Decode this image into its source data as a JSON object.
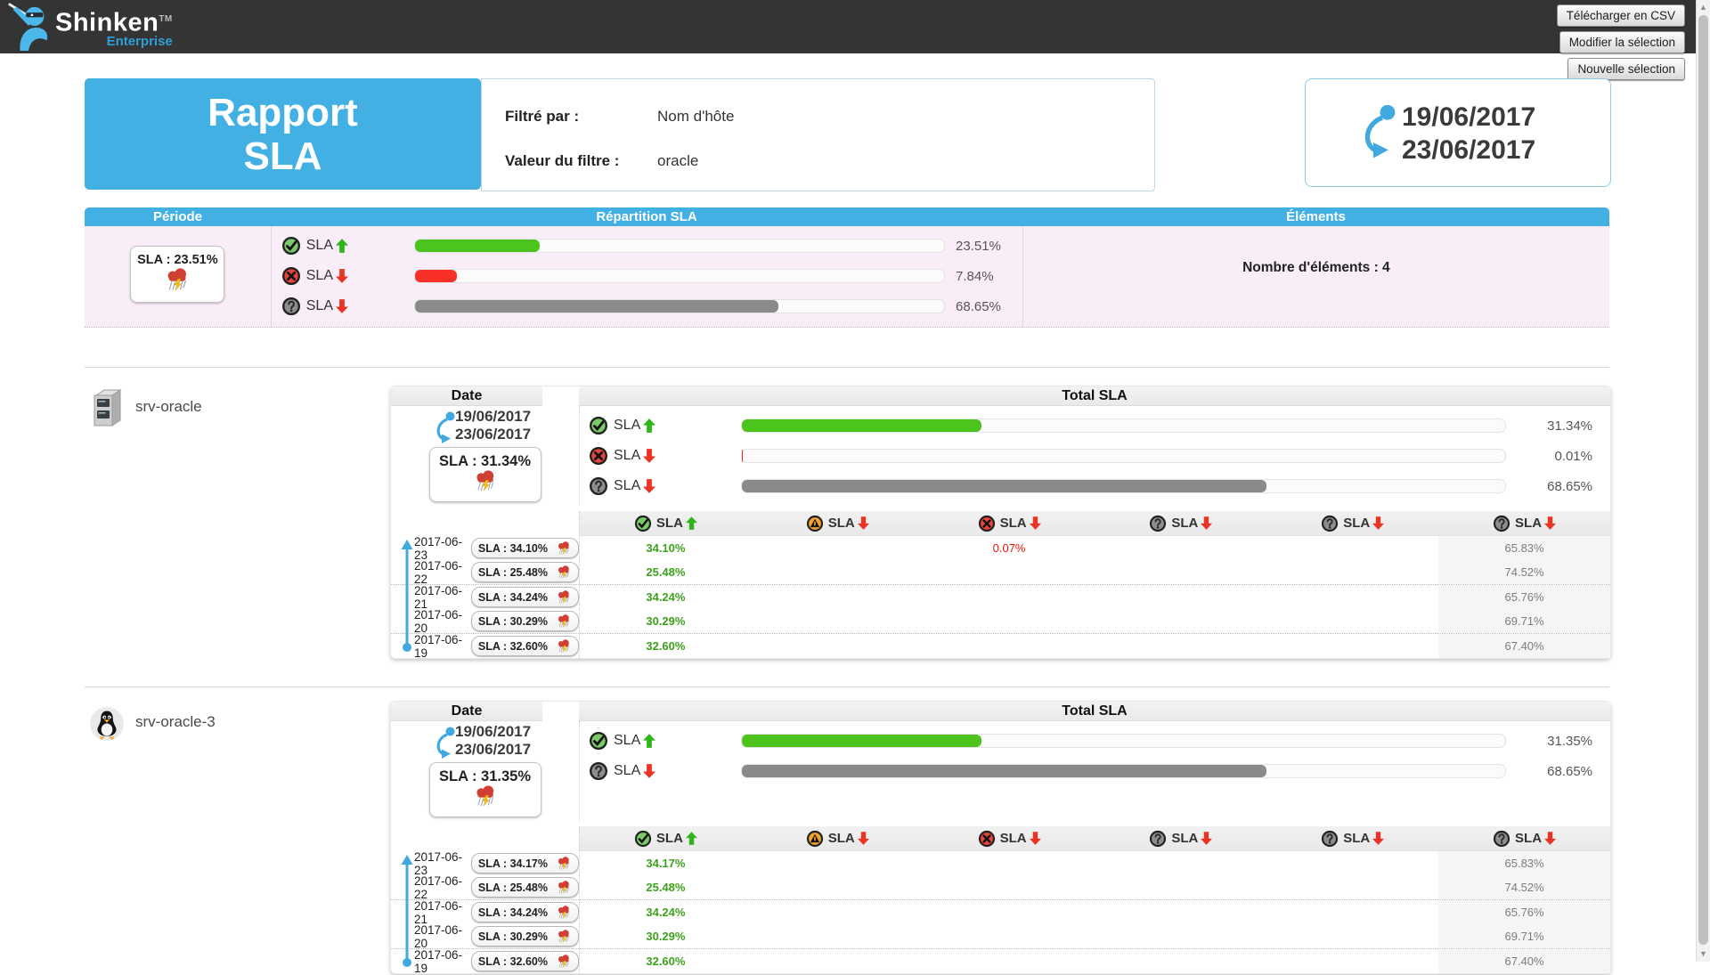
{
  "topbar": {
    "brand": "Shinken",
    "brand_tm": "TM",
    "brand_sub": "Enterprise",
    "buttons": [
      "Télécharger en CSV",
      "Modifier la sélection",
      "Nouvelle sélection"
    ]
  },
  "report": {
    "title_line1": "Rapport",
    "title_line2": "SLA",
    "filter_label": "Filtré par :",
    "filter_value": "Nom d'hôte",
    "filter_value_label": "Valeur du filtre :",
    "filter_value_text": "oracle",
    "date_start": "19/06/2017",
    "date_end": "23/06/2017"
  },
  "colors": {
    "green": "#4cc41d",
    "red": "#f93028",
    "gray": "#8a8a8a",
    "accent_blue": "#43b0e4",
    "pink_bg": "#f9edf7"
  },
  "summary": {
    "headers": [
      "Période",
      "Répartition SLA",
      "Éléments"
    ],
    "period_sla": "SLA : 23.51%",
    "elements_count": "Nombre d'éléments : 4",
    "rows": [
      {
        "icon": "check",
        "label": "SLA",
        "dir": "up",
        "pct": "23.51%",
        "value": 23.51,
        "color": "green"
      },
      {
        "icon": "cross",
        "label": "SLA",
        "dir": "down",
        "pct": "7.84%",
        "value": 7.84,
        "color": "red"
      },
      {
        "icon": "question",
        "label": "SLA",
        "dir": "down",
        "pct": "68.65%",
        "value": 68.65,
        "color": "gray"
      }
    ]
  },
  "chart_data": {
    "type": "bar",
    "title": "Répartition SLA",
    "categories": [
      "SLA up",
      "SLA down",
      "SLA unknown"
    ],
    "values": [
      23.51,
      7.84,
      68.65
    ],
    "ylim": [
      0,
      100
    ]
  },
  "hosts": [
    {
      "name": "srv-oracle",
      "icon": "server",
      "date_header": "Date",
      "total_header": "Total SLA",
      "date_start": "19/06/2017",
      "date_end": "23/06/2017",
      "sla_box": "SLA : 31.34%",
      "total_rows": [
        {
          "icon": "check",
          "label": "SLA",
          "dir": "up",
          "pct": "31.34%",
          "value": 31.34,
          "color": "green"
        },
        {
          "icon": "cross",
          "label": "SLA",
          "dir": "down",
          "pct": "0.01%",
          "value": 0.01,
          "color": "red"
        },
        {
          "icon": "question",
          "label": "SLA",
          "dir": "down",
          "pct": "68.65%",
          "value": 68.65,
          "color": "gray"
        }
      ],
      "columns": [
        {
          "icon": "check",
          "label": "SLA",
          "dir": "up"
        },
        {
          "icon": "warn",
          "label": "SLA",
          "dir": "down"
        },
        {
          "icon": "cross",
          "label": "SLA",
          "dir": "down"
        },
        {
          "icon": "question",
          "label": "SLA",
          "dir": "down"
        },
        {
          "icon": "question",
          "label": "SLA",
          "dir": "down"
        },
        {
          "icon": "question",
          "label": "SLA",
          "dir": "down"
        }
      ],
      "rows": [
        {
          "date": "2017-06-23",
          "badge": "SLA : 34.10%",
          "values": [
            "34.10%",
            "",
            "0.07%",
            "",
            "",
            "65.83%"
          ]
        },
        {
          "date": "2017-06-22",
          "badge": "SLA : 25.48%",
          "values": [
            "25.48%",
            "",
            "",
            "",
            "",
            "74.52%"
          ]
        },
        {
          "date": "2017-06-21",
          "badge": "SLA : 34.24%",
          "values": [
            "34.24%",
            "",
            "",
            "",
            "",
            "65.76%"
          ]
        },
        {
          "date": "2017-06-20",
          "badge": "SLA : 30.29%",
          "values": [
            "30.29%",
            "",
            "",
            "",
            "",
            "69.71%"
          ]
        },
        {
          "date": "2017-06-19",
          "badge": "SLA : 32.60%",
          "values": [
            "32.60%",
            "",
            "",
            "",
            "",
            "67.40%"
          ]
        }
      ]
    },
    {
      "name": "srv-oracle-3",
      "icon": "linux",
      "date_header": "Date",
      "total_header": "Total SLA",
      "date_start": "19/06/2017",
      "date_end": "23/06/2017",
      "sla_box": "SLA : 31.35%",
      "total_rows": [
        {
          "icon": "check",
          "label": "SLA",
          "dir": "up",
          "pct": "31.35%",
          "value": 31.35,
          "color": "green"
        },
        {
          "icon": "question",
          "label": "SLA",
          "dir": "down",
          "pct": "68.65%",
          "value": 68.65,
          "color": "gray"
        }
      ],
      "columns": [
        {
          "icon": "check",
          "label": "SLA",
          "dir": "up"
        },
        {
          "icon": "warn",
          "label": "SLA",
          "dir": "down"
        },
        {
          "icon": "cross",
          "label": "SLA",
          "dir": "down"
        },
        {
          "icon": "question",
          "label": "SLA",
          "dir": "down"
        },
        {
          "icon": "question",
          "label": "SLA",
          "dir": "down"
        },
        {
          "icon": "question",
          "label": "SLA",
          "dir": "down"
        }
      ],
      "rows": [
        {
          "date": "2017-06-23",
          "badge": "SLA : 34.17%",
          "values": [
            "34.17%",
            "",
            "",
            "",
            "",
            "65.83%"
          ]
        },
        {
          "date": "2017-06-22",
          "badge": "SLA : 25.48%",
          "values": [
            "25.48%",
            "",
            "",
            "",
            "",
            "74.52%"
          ]
        },
        {
          "date": "2017-06-21",
          "badge": "SLA : 34.24%",
          "values": [
            "34.24%",
            "",
            "",
            "",
            "",
            "65.76%"
          ]
        },
        {
          "date": "2017-06-20",
          "badge": "SLA : 30.29%",
          "values": [
            "30.29%",
            "",
            "",
            "",
            "",
            "69.71%"
          ]
        },
        {
          "date": "2017-06-19",
          "badge": "SLA : 32.60%",
          "values": [
            "32.60%",
            "",
            "",
            "",
            "",
            "67.40%"
          ]
        }
      ]
    }
  ]
}
